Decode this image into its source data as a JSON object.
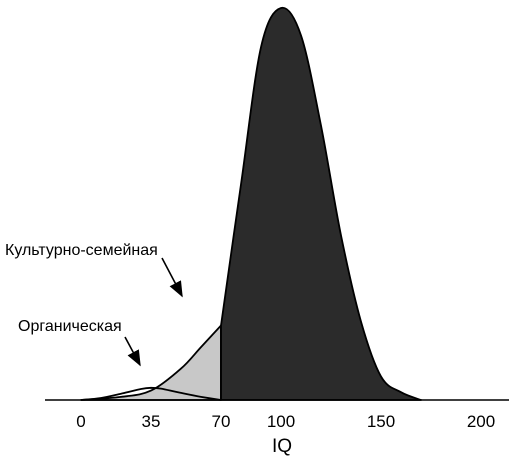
{
  "chart_data": {
    "type": "area",
    "xlabel": "IQ",
    "x_ticks": [
      0,
      35,
      70,
      100,
      150,
      200
    ],
    "x_tick_labels": [
      "0",
      "35",
      "70",
      "100",
      "150",
      "200"
    ],
    "xlim": [
      -18,
      205
    ],
    "grid": false,
    "series": [
      {
        "name": "Органическая",
        "x": [
          0,
          10,
          20,
          30,
          35,
          40,
          50,
          60,
          70
        ],
        "y": [
          0.0,
          0.005,
          0.016,
          0.028,
          0.031,
          0.029,
          0.018,
          0.008,
          0.0
        ],
        "fill": "none"
      },
      {
        "name": "Культурно-семейная",
        "x": [
          0,
          20,
          35,
          50,
          60,
          70
        ],
        "y": [
          0.0,
          0.008,
          0.024,
          0.08,
          0.135,
          0.19
        ],
        "fill": "light-gray"
      },
      {
        "x": [
          70,
          80,
          90,
          100,
          110,
          120,
          130,
          140,
          150,
          160,
          170
        ],
        "y": [
          0.19,
          0.55,
          0.9,
          1.0,
          0.93,
          0.7,
          0.42,
          0.2,
          0.06,
          0.02,
          0.0
        ],
        "fill": "dark-gray"
      }
    ],
    "annotations": [
      {
        "text": "Культурно-семейная",
        "points_to_x": 60
      },
      {
        "text": "Органическая",
        "points_to_x": 35
      }
    ]
  },
  "colors": {
    "dark_fill": "#2b2b2b",
    "light_fill": "#c8c8c8",
    "stroke": "#000000"
  }
}
